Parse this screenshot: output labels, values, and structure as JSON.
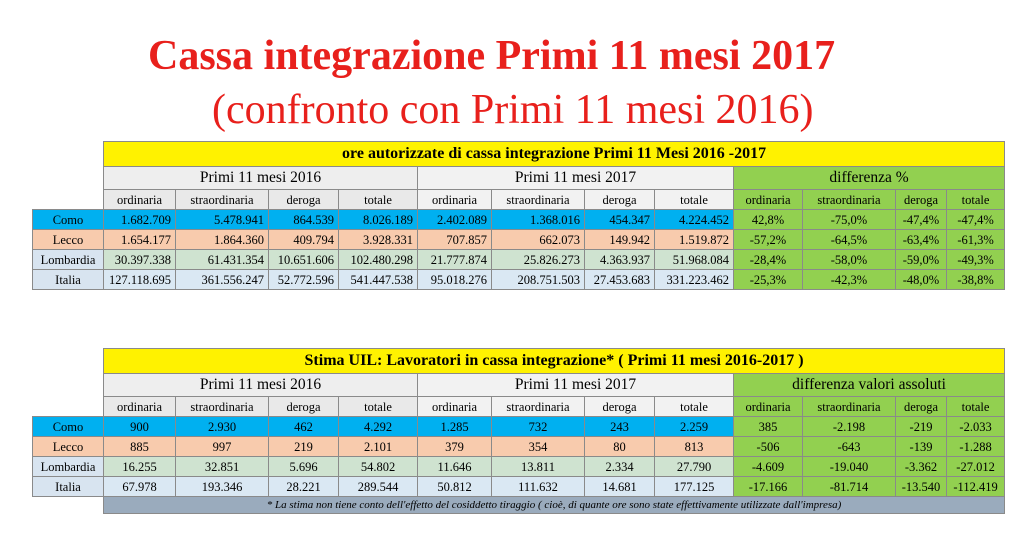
{
  "title_line1": "Cassa integrazione Primi 11 mesi 2017",
  "title_line2": "(confronto con Primi 11 mesi 2016)",
  "table1": {
    "header": "ore autorizzate di cassa integrazione Primi 11 Mesi 2016 -2017",
    "group1": "Primi 11 mesi 2016",
    "group2": "Primi 11 mesi 2017",
    "group3": "differenza %",
    "subheaders": [
      "ordinaria",
      "straordinaria",
      "deroga",
      "totale",
      "ordinaria",
      "straordinaria",
      "deroga",
      "totale",
      "ordinaria",
      "straordinaria",
      "deroga",
      "totale"
    ],
    "rows": [
      {
        "label": "Como",
        "values": [
          "1.682.709",
          "5.478.941",
          "864.539",
          "8.026.189",
          "2.402.089",
          "1.368.016",
          "454.347",
          "4.224.452",
          "42,8%",
          "-75,0%",
          "-47,4%",
          "-47,4%"
        ]
      },
      {
        "label": "Lecco",
        "values": [
          "1.654.177",
          "1.864.360",
          "409.794",
          "3.928.331",
          "707.857",
          "662.073",
          "149.942",
          "1.519.872",
          "-57,2%",
          "-64,5%",
          "-63,4%",
          "-61,3%"
        ]
      },
      {
        "label": "Lombardia",
        "values": [
          "30.397.338",
          "61.431.354",
          "10.651.606",
          "102.480.298",
          "21.777.874",
          "25.826.273",
          "4.363.937",
          "51.968.084",
          "-28,4%",
          "-58,0%",
          "-59,0%",
          "-49,3%"
        ]
      },
      {
        "label": "Italia",
        "values": [
          "127.118.695",
          "361.556.247",
          "52.772.596",
          "541.447.538",
          "95.018.276",
          "208.751.503",
          "27.453.683",
          "331.223.462",
          "-25,3%",
          "-42,3%",
          "-48,0%",
          "-38,8%"
        ]
      }
    ]
  },
  "table2": {
    "header": "Stima UIL: Lavoratori in cassa integrazione* ( Primi 11 mesi 2016-2017 )",
    "group1": "Primi 11 mesi 2016",
    "group2": "Primi 11 mesi 2017",
    "group3": "differenza valori assoluti",
    "subheaders": [
      "ordinaria",
      "straordinaria",
      "deroga",
      "totale",
      "ordinaria",
      "straordinaria",
      "deroga",
      "totale",
      "ordinaria",
      "straordinaria",
      "deroga",
      "totale"
    ],
    "rows": [
      {
        "label": "Como",
        "values": [
          "900",
          "2.930",
          "462",
          "4.292",
          "1.285",
          "732",
          "243",
          "2.259",
          "385",
          "-2.198",
          "-219",
          "-2.033"
        ]
      },
      {
        "label": "Lecco",
        "values": [
          "885",
          "997",
          "219",
          "2.101",
          "379",
          "354",
          "80",
          "813",
          "-506",
          "-643",
          "-139",
          "-1.288"
        ]
      },
      {
        "label": "Lombardia",
        "values": [
          "16.255",
          "32.851",
          "5.696",
          "54.802",
          "11.646",
          "13.811",
          "2.334",
          "27.790",
          "-4.609",
          "-19.040",
          "-3.362",
          "-27.012"
        ]
      },
      {
        "label": "Italia",
        "values": [
          "67.978",
          "193.346",
          "28.221",
          "289.544",
          "50.812",
          "111.632",
          "14.681",
          "177.125",
          "-17.166",
          "-81.714",
          "-13.540",
          "-112.419"
        ]
      }
    ],
    "note": "* La stima non tiene conto dell'effetto del cosiddetto tiraggio ( cioè, di quante ore sono state effettivamente utilizzate dall'impresa)"
  }
}
